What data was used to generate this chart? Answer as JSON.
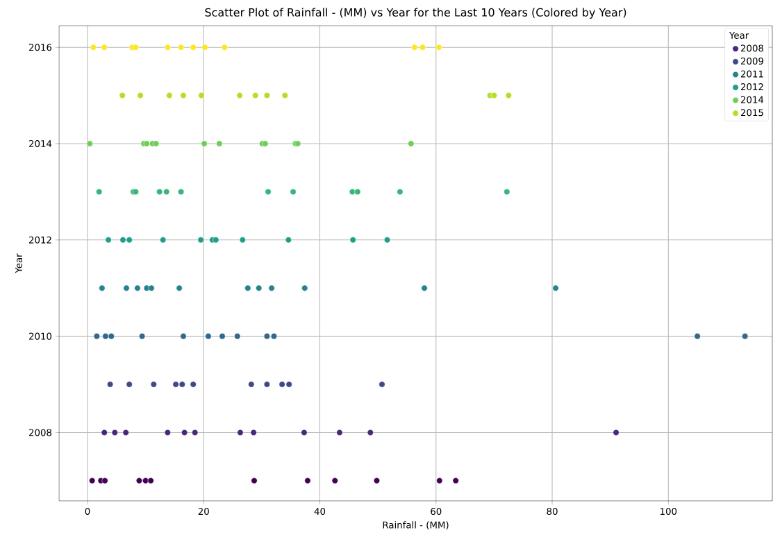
{
  "chart_data": {
    "type": "scatter",
    "title": "Scatter Plot of Rainfall - (MM) vs Year for the Last 10 Years (Colored by Year)",
    "xlabel": "Rainfall - (MM)",
    "ylabel": "Year",
    "legend_title": "Year",
    "xlim": [
      -4.9,
      117.9
    ],
    "ylim": [
      2006.58,
      2016.45
    ],
    "xticks": [
      0,
      20,
      40,
      60,
      80,
      100
    ],
    "yticks": [
      2008,
      2010,
      2012,
      2014,
      2016
    ],
    "grid": true,
    "legend": "top right",
    "marker": "circle",
    "series": [
      {
        "color": "#440154",
        "x": [
          0.8,
          2.3,
          3.0,
          8.9,
          10.0,
          10.9,
          28.7,
          37.9,
          42.6,
          49.8,
          60.6,
          63.4
        ],
        "values": [
          2007,
          2007,
          2007,
          2007,
          2007,
          2007,
          2007,
          2007,
          2007,
          2007,
          2007,
          2007
        ]
      },
      {
        "name": "2008",
        "color": "#482878",
        "x": [
          2.9,
          4.7,
          6.6,
          13.8,
          16.7,
          18.5,
          26.3,
          28.6,
          37.3,
          43.4,
          48.7,
          91.0
        ],
        "values": [
          2008,
          2008,
          2008,
          2008,
          2008,
          2008,
          2008,
          2008,
          2008,
          2008,
          2008,
          2008
        ]
      },
      {
        "name": "2009",
        "color": "#3e4989",
        "x": [
          3.9,
          7.2,
          11.4,
          15.2,
          16.3,
          18.2,
          28.2,
          30.9,
          33.5,
          34.7,
          50.7
        ],
        "values": [
          2009,
          2009,
          2009,
          2009,
          2009,
          2009,
          2009,
          2009,
          2009,
          2009,
          2009
        ]
      },
      {
        "color": "#31688e",
        "x": [
          1.6,
          3.1,
          4.1,
          9.4,
          16.5,
          20.8,
          23.2,
          25.8,
          30.9,
          32.1,
          105.0,
          113.2
        ],
        "values": [
          2010,
          2010,
          2010,
          2010,
          2010,
          2010,
          2010,
          2010,
          2010,
          2010,
          2010,
          2010
        ]
      },
      {
        "name": "2011",
        "color": "#26828e",
        "x": [
          2.5,
          6.7,
          8.6,
          10.2,
          11.0,
          15.8,
          27.6,
          29.5,
          31.7,
          37.4,
          58.0,
          80.6
        ],
        "values": [
          2011,
          2011,
          2011,
          2011,
          2011,
          2011,
          2011,
          2011,
          2011,
          2011,
          2011,
          2011
        ]
      },
      {
        "name": "2012",
        "color": "#1f9e89",
        "x": [
          3.6,
          6.1,
          7.2,
          13.0,
          19.5,
          21.5,
          22.1,
          26.7,
          34.6,
          45.7,
          51.6
        ],
        "values": [
          2012,
          2012,
          2012,
          2012,
          2012,
          2012,
          2012,
          2012,
          2012,
          2012,
          2012
        ]
      },
      {
        "color": "#35b779",
        "x": [
          2.0,
          7.9,
          8.3,
          12.4,
          13.6,
          16.1,
          31.1,
          35.4,
          45.6,
          46.5,
          53.8,
          72.2
        ],
        "values": [
          2013,
          2013,
          2013,
          2013,
          2013,
          2013,
          2013,
          2013,
          2013,
          2013,
          2013,
          2013
        ]
      },
      {
        "name": "2014",
        "color": "#6ece58",
        "x": [
          0.4,
          9.7,
          10.2,
          11.2,
          11.8,
          20.1,
          22.7,
          30.1,
          30.6,
          35.8,
          36.2,
          55.7
        ],
        "values": [
          2014,
          2014,
          2014,
          2014,
          2014,
          2014,
          2014,
          2014,
          2014,
          2014,
          2014,
          2014
        ]
      },
      {
        "name": "2015",
        "color": "#b5de2b",
        "x": [
          6.0,
          9.1,
          14.1,
          16.5,
          19.6,
          26.2,
          28.9,
          30.9,
          34.0,
          69.3,
          70.0,
          72.5
        ],
        "values": [
          2015,
          2015,
          2015,
          2015,
          2015,
          2015,
          2015,
          2015,
          2015,
          2015,
          2015,
          2015
        ]
      },
      {
        "color": "#fde725",
        "x": [
          1.0,
          2.9,
          7.7,
          8.3,
          13.8,
          16.1,
          18.2,
          20.2,
          23.6,
          56.3,
          57.7,
          60.5
        ],
        "values": [
          2016,
          2016,
          2016,
          2016,
          2016,
          2016,
          2016,
          2016,
          2016,
          2016,
          2016,
          2016
        ]
      }
    ]
  }
}
